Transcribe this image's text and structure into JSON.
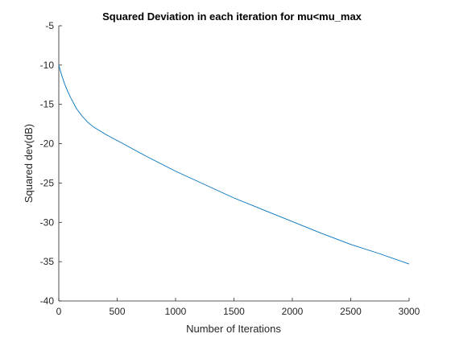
{
  "chart_data": {
    "type": "line",
    "title": "Squared Deviation  in each iteration for mu<mu_max",
    "xlabel": "Number of Iterations",
    "ylabel": "Squared dev(dB)",
    "xlim": [
      0,
      3000
    ],
    "ylim": [
      -40,
      -5
    ],
    "x_ticks": [
      0,
      500,
      1000,
      1500,
      2000,
      2500,
      3000
    ],
    "y_ticks": [
      -40,
      -35,
      -30,
      -25,
      -20,
      -15,
      -10,
      -5
    ],
    "x_tick_labels": [
      "0",
      "500",
      "1000",
      "1500",
      "2000",
      "2500",
      "3000"
    ],
    "y_tick_labels": [
      "-40",
      "-35",
      "-30",
      "-25",
      "-20",
      "-15",
      "-10",
      "-5"
    ],
    "grid": false,
    "legend": "none",
    "series": [
      {
        "color": "#0072bd",
        "x": [
          0,
          25,
          50,
          75,
          100,
          150,
          200,
          250,
          300,
          400,
          500,
          750,
          1000,
          1250,
          1500,
          1750,
          2000,
          2250,
          2500,
          2750,
          3000
        ],
        "y": [
          -10.0,
          -11.3,
          -12.4,
          -13.3,
          -14.1,
          -15.5,
          -16.5,
          -17.3,
          -17.9,
          -18.8,
          -19.6,
          -21.6,
          -23.5,
          -25.2,
          -26.9,
          -28.4,
          -29.9,
          -31.4,
          -32.8,
          -34.0,
          -35.3
        ]
      }
    ]
  }
}
